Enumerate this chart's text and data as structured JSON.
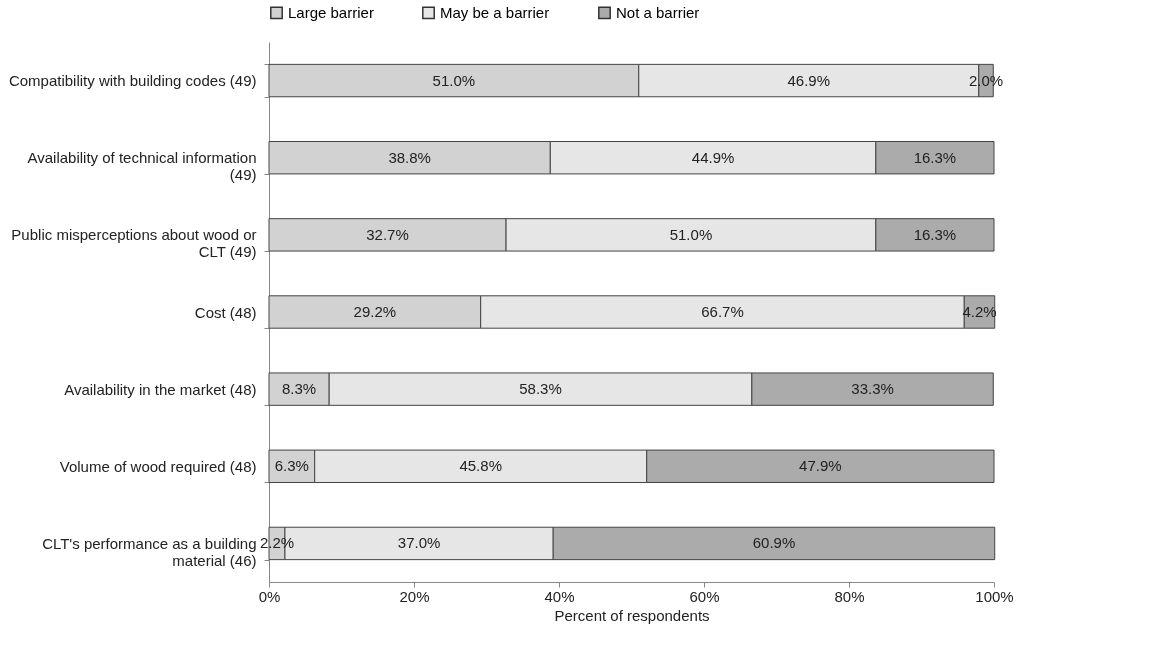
{
  "chart_data": {
    "type": "bar",
    "orientation": "horizontal",
    "stacked": true,
    "categories": [
      "Compatibility with building codes (49)",
      "Availability of technical information (49)",
      "Public misperceptions about wood or CLT (49)",
      "Cost (48)",
      "Availability in the market (48)",
      "Volume of wood required (48)",
      "CLT's performance as a building material (46)"
    ],
    "series": [
      {
        "name": "Large barrier",
        "color": "#d2d2d2",
        "values": [
          51.0,
          38.8,
          32.7,
          29.2,
          8.3,
          6.3,
          2.2
        ],
        "value_labels": [
          "51.0%",
          "38.8%",
          "32.7%",
          "29.2%",
          "8.3%",
          "6.3%",
          "2.2%"
        ]
      },
      {
        "name": "May be a barrier",
        "color": "#e6e6e6",
        "values": [
          46.9,
          44.9,
          51.0,
          66.7,
          58.3,
          45.8,
          37.0
        ],
        "value_labels": [
          "46.9%",
          "44.9%",
          "51.0%",
          "66.7%",
          "58.3%",
          "45.8%",
          "37.0%"
        ]
      },
      {
        "name": "Not a barrier",
        "color": "#ababab",
        "values": [
          2.0,
          16.3,
          16.3,
          4.2,
          33.3,
          47.9,
          60.9
        ],
        "value_labels": [
          "2.0%",
          "16.3%",
          "16.3%",
          "4.2%",
          "33.3%",
          "47.9%",
          "60.9%"
        ]
      }
    ],
    "xlim": [
      0,
      100
    ],
    "xticks": [
      {
        "value": 0,
        "label": "0%"
      },
      {
        "value": 20,
        "label": "20%"
      },
      {
        "value": 40,
        "label": "40%"
      },
      {
        "value": 60,
        "label": "60%"
      },
      {
        "value": 80,
        "label": "80%"
      },
      {
        "value": 100,
        "label": "100%"
      }
    ],
    "xlabel": "Percent of respondents",
    "legend": "top",
    "grid": false
  }
}
